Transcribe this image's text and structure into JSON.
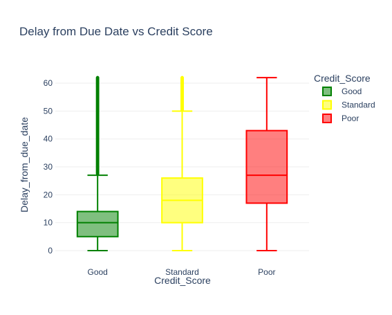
{
  "chart_data": {
    "type": "box",
    "title": "Delay from Due Date vs Credit Score",
    "xlabel": "Credit_Score",
    "ylabel": "Delay_from_due_date",
    "ylim": [
      -2,
      65
    ],
    "yticks": [
      0,
      10,
      20,
      30,
      40,
      50,
      60
    ],
    "grid": true,
    "legend": {
      "title": "Credit_Score",
      "position": "top-right"
    },
    "categories": [
      "Good",
      "Standard",
      "Poor"
    ],
    "series": [
      {
        "name": "Good",
        "color": "#008000",
        "fill": "rgba(0,128,0,0.5)",
        "min": 0,
        "q1": 5,
        "median": 10,
        "q3": 14,
        "max": 27,
        "outliers_range": [
          27.5,
          62
        ]
      },
      {
        "name": "Standard",
        "color": "#ffff00",
        "fill": "rgba(255,255,0,0.5)",
        "min": 0,
        "q1": 10,
        "median": 18,
        "q3": 26,
        "max": 50,
        "outliers_range": [
          50.5,
          62
        ]
      },
      {
        "name": "Poor",
        "color": "#ff0000",
        "fill": "rgba(255,0,0,0.5)",
        "min": 0,
        "q1": 17,
        "median": 27,
        "q3": 43,
        "max": 62,
        "outliers_range": null
      }
    ]
  }
}
